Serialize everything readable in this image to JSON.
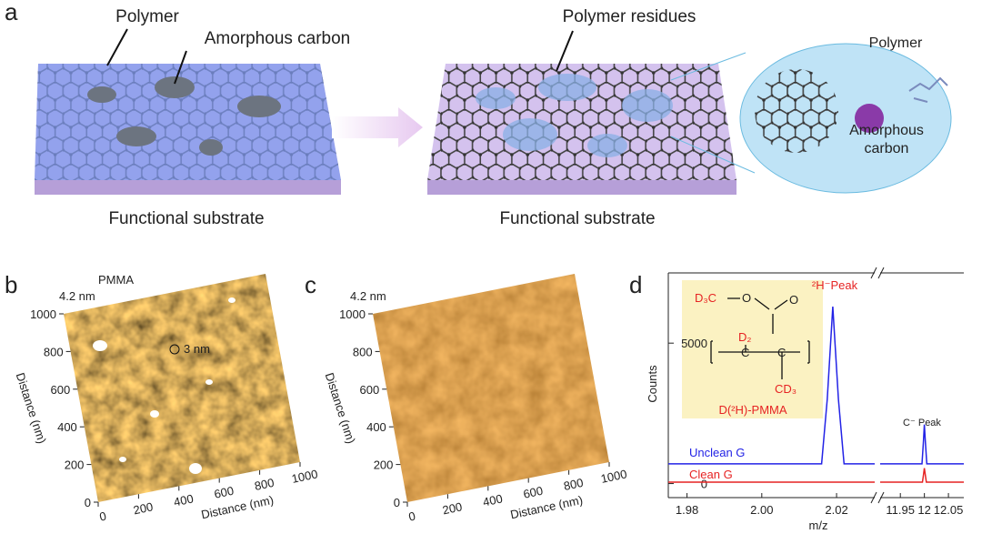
{
  "panel_a": {
    "label": "a",
    "annotations": {
      "polymer": "Polymer",
      "amorphous_carbon": "Amorphous carbon",
      "polymer_residues": "Polymer residues"
    },
    "captions": [
      "Functional substrate",
      "Functional substrate"
    ],
    "inset": {
      "polymer": "Polymer",
      "amorphous_carbon": [
        "Amorphous",
        "carbon"
      ]
    }
  },
  "panel_b": {
    "label": "b",
    "height_scale": "4.2 nm",
    "annotations": {
      "pmma": "PMMA",
      "feature": "3 nm"
    },
    "xticks": [
      0,
      200,
      400,
      600,
      800,
      1000
    ],
    "yticks": [
      0,
      200,
      400,
      600,
      800,
      1000
    ],
    "xlabel": "Distance (nm)",
    "ylabel": "Distance (nm)"
  },
  "panel_c": {
    "label": "c",
    "height_scale": "4.2 nm",
    "xticks": [
      0,
      200,
      400,
      600,
      800,
      1000
    ],
    "yticks": [
      0,
      200,
      400,
      600,
      800,
      1000
    ],
    "xlabel": "Distance (nm)",
    "ylabel": "Distance (nm)"
  },
  "chart_data": {
    "type": "line",
    "label": "d",
    "ylabel": "Counts",
    "xlabel": "m/z",
    "ylim": [
      -500,
      7500
    ],
    "yticks": [
      0,
      5000
    ],
    "x_segments": [
      {
        "xlim": [
          1.975,
          2.0302
        ],
        "xticks": [
          1.98,
          {
            "value": 2,
            "label": "2.00"
          },
          2.02
        ]
      },
      {
        "xlim": [
          11.908,
          12.082
        ],
        "xticks": [
          11.95,
          12,
          12.05
        ]
      }
    ],
    "series": [
      {
        "name": "Unclean G",
        "color": "#2323e6",
        "segments": [
          {
            "x": [
              1.975,
              2.016,
              2.0175,
              2.019,
              2.0205,
              2.022,
              2.0302
            ],
            "values": [
              700,
              700,
              3000,
              6300,
              3000,
              700,
              700
            ]
          },
          {
            "x": [
              11.908,
              11.995,
              11.998,
              12,
              12.002,
              12.005,
              12.082
            ],
            "values": [
              700,
              700,
              1500,
              2100,
              1500,
              700,
              700
            ]
          }
        ]
      },
      {
        "name": "Clean G",
        "color": "#e62323",
        "segments": [
          {
            "x": [
              1.975,
              2.0302
            ],
            "values": [
              50,
              50
            ]
          },
          {
            "x": [
              11.908,
              11.996,
              11.998,
              12,
              12.002,
              12.004,
              12.082
            ],
            "values": [
              50,
              50,
              300,
              550,
              300,
              50,
              50
            ]
          }
        ]
      }
    ],
    "annotations": [
      "²H⁻Peak",
      "C⁻ Peak"
    ],
    "inset": {
      "texts": [
        "D₃C",
        "O",
        "O",
        "D₂",
        "C",
        "C",
        "CD₃"
      ],
      "name": "D(²H)-PMMA"
    }
  }
}
